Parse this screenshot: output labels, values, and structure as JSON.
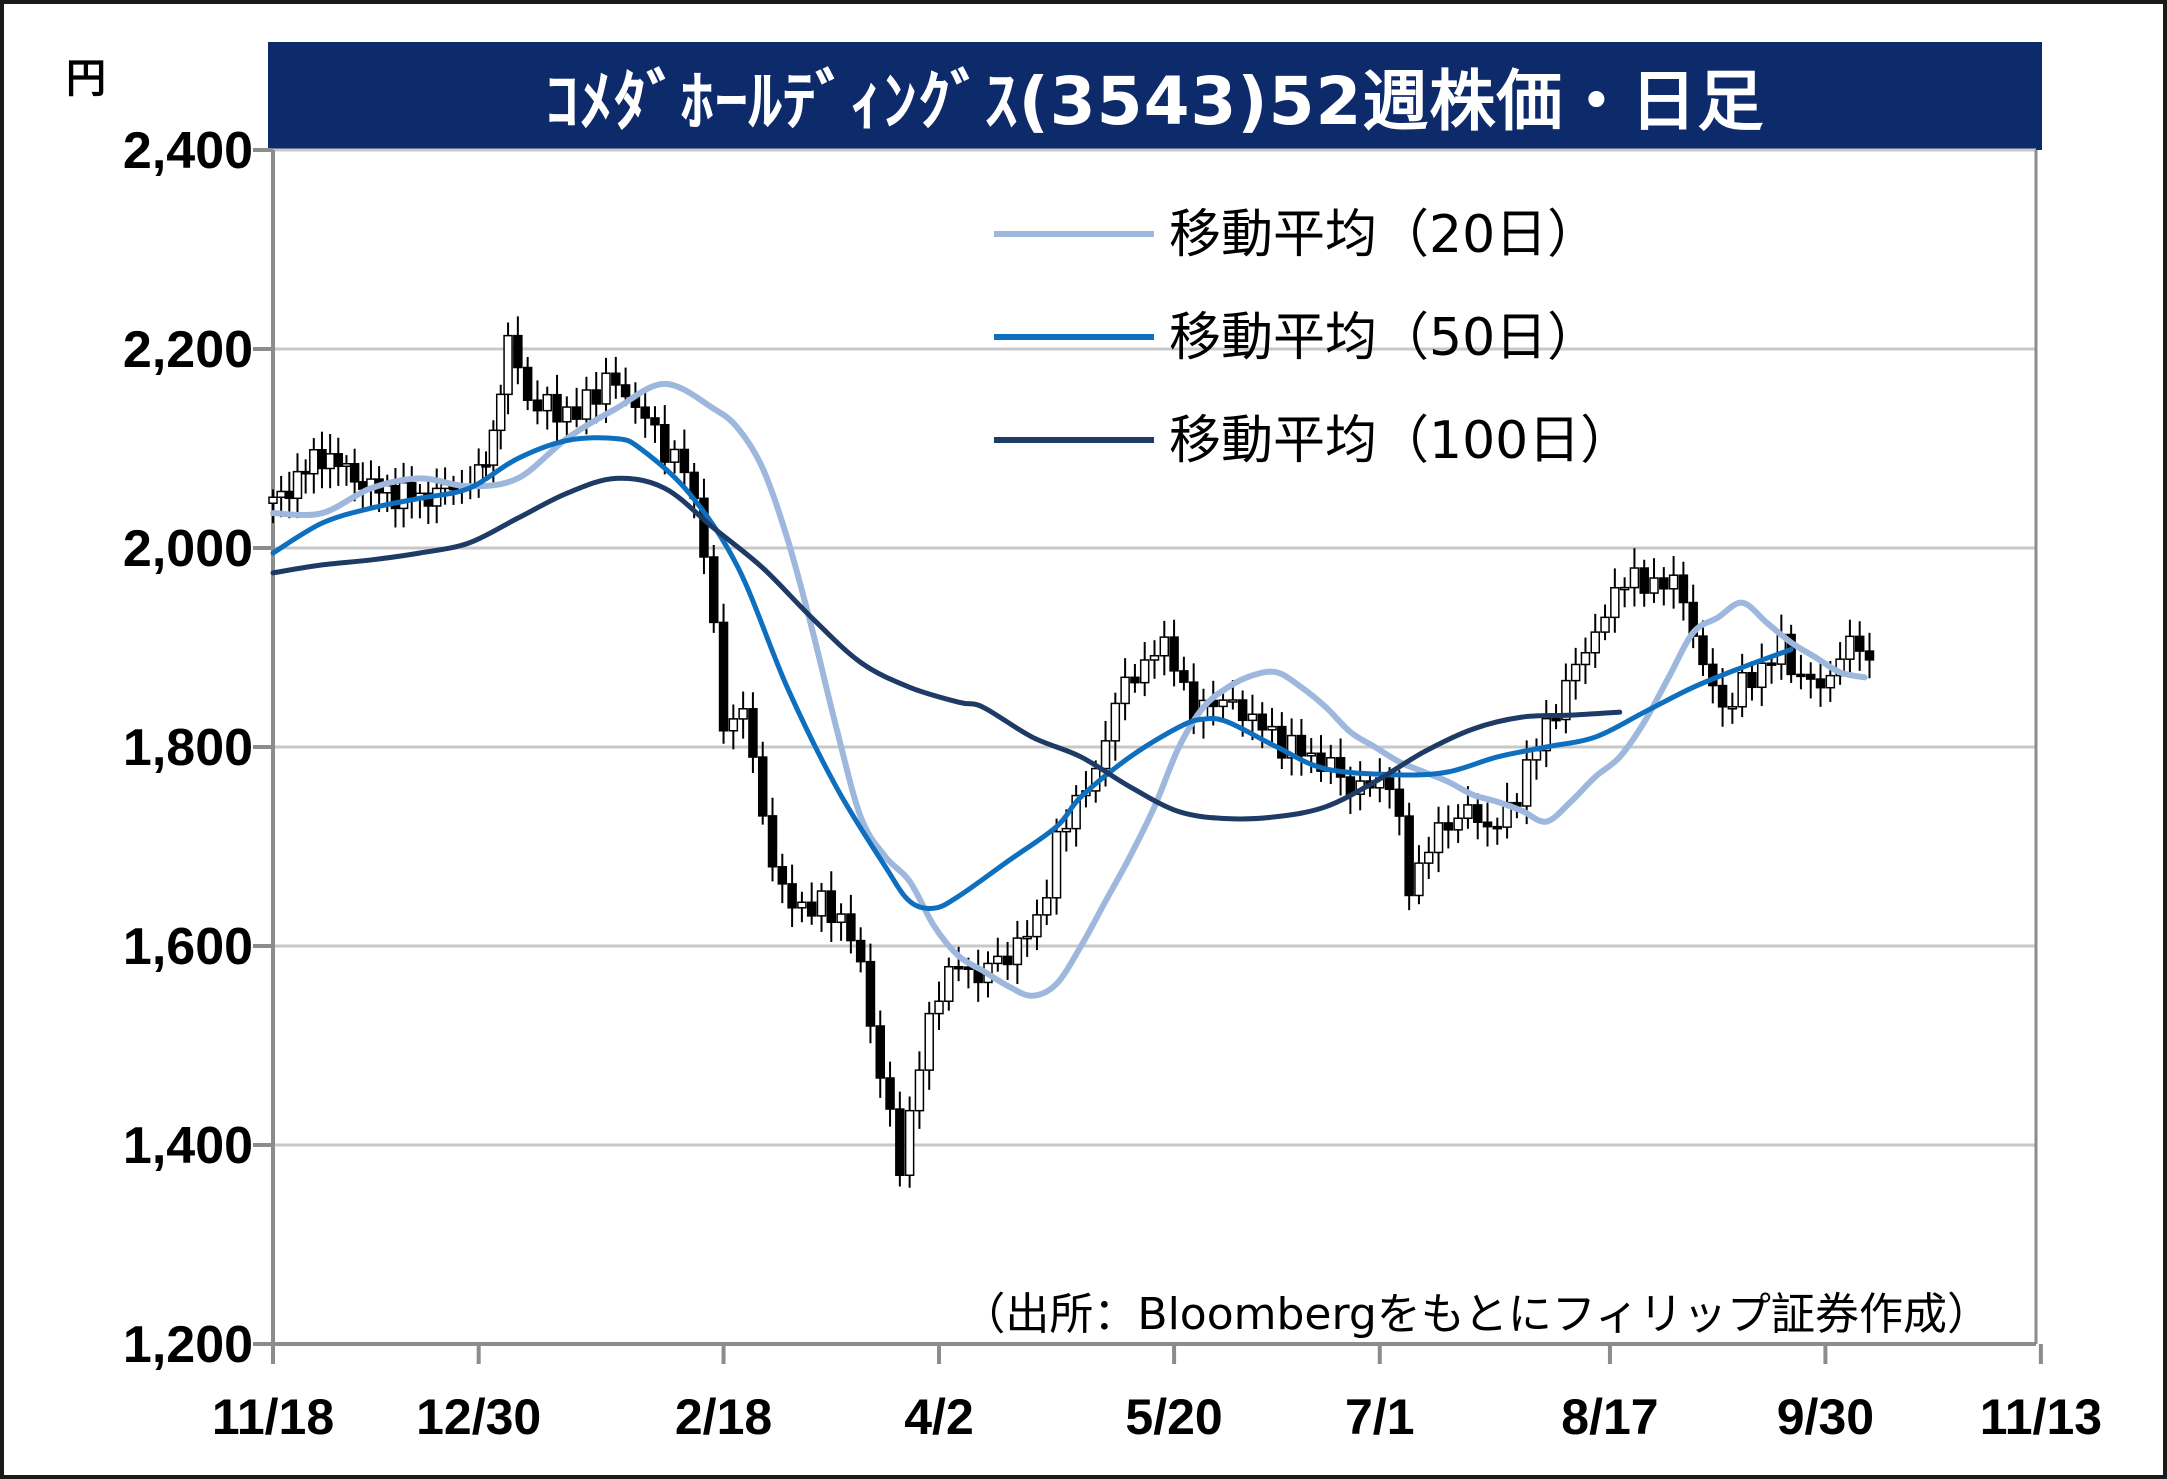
{
  "chart_data": {
    "type": "line",
    "title": "ｺﾒﾀﾞﾎｰﾙﾃﾞｨﾝｸﾞｽ(3543)52週株価・日足",
    "unit": "円",
    "source": "（出所：Bloombergをもとにフィリップ証券作成）",
    "x_tick_labels": [
      "11/18",
      "12/30",
      "2/18",
      "4/2",
      "5/20",
      "7/1",
      "8/17",
      "9/30",
      "11/13"
    ],
    "y_tick_labels": [
      "1,200",
      "1,400",
      "1,600",
      "1,800",
      "2,000",
      "2,200",
      "2,400"
    ],
    "y_tick_values": [
      1200,
      1400,
      1600,
      1800,
      2000,
      2200,
      2400
    ],
    "ylim": [
      1200,
      2400
    ],
    "x_range_days": [
      0,
      360
    ],
    "x_tick_days": [
      0,
      42,
      92,
      136,
      184,
      226,
      273,
      317,
      361
    ],
    "grid": true,
    "legend_position": "top-right",
    "colors": {
      "ma20": "#9db8dc",
      "ma50": "#0f6fbf",
      "ma100": "#1e3b66",
      "candle": "#000000",
      "title_bg": "#0d2a6b",
      "grid": "#c8c8c8"
    },
    "series": [
      {
        "name": "移動平均（20日）",
        "key": "ma20",
        "points": [
          [
            0,
            2035
          ],
          [
            10,
            2035
          ],
          [
            20,
            2060
          ],
          [
            30,
            2070
          ],
          [
            40,
            2062
          ],
          [
            50,
            2070
          ],
          [
            60,
            2110
          ],
          [
            70,
            2140
          ],
          [
            80,
            2165
          ],
          [
            90,
            2140
          ],
          [
            95,
            2120
          ],
          [
            100,
            2080
          ],
          [
            105,
            2010
          ],
          [
            110,
            1920
          ],
          [
            115,
            1820
          ],
          [
            120,
            1730
          ],
          [
            125,
            1690
          ],
          [
            130,
            1665
          ],
          [
            135,
            1620
          ],
          [
            140,
            1590
          ],
          [
            145,
            1575
          ],
          [
            150,
            1560
          ],
          [
            155,
            1550
          ],
          [
            160,
            1562
          ],
          [
            165,
            1600
          ],
          [
            170,
            1645
          ],
          [
            175,
            1690
          ],
          [
            180,
            1740
          ],
          [
            185,
            1800
          ],
          [
            190,
            1840
          ],
          [
            195,
            1860
          ],
          [
            200,
            1872
          ],
          [
            205,
            1875
          ],
          [
            210,
            1860
          ],
          [
            215,
            1840
          ],
          [
            220,
            1815
          ],
          [
            225,
            1800
          ],
          [
            230,
            1785
          ],
          [
            235,
            1775
          ],
          [
            240,
            1765
          ],
          [
            245,
            1752
          ],
          [
            250,
            1745
          ],
          [
            255,
            1736
          ],
          [
            260,
            1725
          ],
          [
            265,
            1745
          ],
          [
            270,
            1770
          ],
          [
            275,
            1790
          ],
          [
            280,
            1825
          ],
          [
            285,
            1870
          ],
          [
            290,
            1915
          ],
          [
            295,
            1930
          ],
          [
            300,
            1945
          ],
          [
            305,
            1925
          ],
          [
            310,
            1905
          ],
          [
            315,
            1890
          ],
          [
            320,
            1875
          ],
          [
            325,
            1870
          ]
        ]
      },
      {
        "name": "移動平均（50日）",
        "key": "ma50",
        "points": [
          [
            0,
            1995
          ],
          [
            10,
            2025
          ],
          [
            20,
            2040
          ],
          [
            30,
            2050
          ],
          [
            40,
            2060
          ],
          [
            50,
            2090
          ],
          [
            60,
            2108
          ],
          [
            70,
            2110
          ],
          [
            75,
            2100
          ],
          [
            85,
            2055
          ],
          [
            95,
            1980
          ],
          [
            105,
            1860
          ],
          [
            115,
            1760
          ],
          [
            125,
            1680
          ],
          [
            130,
            1645
          ],
          [
            135,
            1638
          ],
          [
            140,
            1650
          ],
          [
            150,
            1685
          ],
          [
            160,
            1720
          ],
          [
            165,
            1750
          ],
          [
            175,
            1790
          ],
          [
            185,
            1820
          ],
          [
            190,
            1828
          ],
          [
            195,
            1825
          ],
          [
            205,
            1800
          ],
          [
            215,
            1778
          ],
          [
            230,
            1772
          ],
          [
            240,
            1775
          ],
          [
            250,
            1790
          ],
          [
            260,
            1800
          ],
          [
            270,
            1810
          ],
          [
            280,
            1835
          ],
          [
            290,
            1860
          ],
          [
            300,
            1880
          ],
          [
            310,
            1898
          ]
        ]
      },
      {
        "name": "移動平均（100日）",
        "key": "ma100",
        "points": [
          [
            0,
            1975
          ],
          [
            10,
            1983
          ],
          [
            20,
            1988
          ],
          [
            30,
            1995
          ],
          [
            40,
            2005
          ],
          [
            50,
            2030
          ],
          [
            60,
            2055
          ],
          [
            70,
            2070
          ],
          [
            80,
            2060
          ],
          [
            90,
            2020
          ],
          [
            100,
            1980
          ],
          [
            110,
            1930
          ],
          [
            120,
            1885
          ],
          [
            130,
            1860
          ],
          [
            140,
            1845
          ],
          [
            145,
            1840
          ],
          [
            155,
            1810
          ],
          [
            165,
            1790
          ],
          [
            175,
            1760
          ],
          [
            185,
            1735
          ],
          [
            195,
            1728
          ],
          [
            205,
            1730
          ],
          [
            215,
            1740
          ],
          [
            225,
            1765
          ],
          [
            235,
            1795
          ],
          [
            245,
            1818
          ],
          [
            255,
            1830
          ],
          [
            265,
            1832
          ],
          [
            275,
            1835
          ]
        ]
      }
    ],
    "ohlc_approx": [
      [
        0,
        2045
      ],
      [
        10,
        2095
      ],
      [
        20,
        2060
      ],
      [
        30,
        2050
      ],
      [
        42,
        2070
      ],
      [
        45,
        2115
      ],
      [
        48,
        2210
      ],
      [
        52,
        2150
      ],
      [
        56,
        2140
      ],
      [
        62,
        2135
      ],
      [
        68,
        2170
      ],
      [
        74,
        2145
      ],
      [
        80,
        2100
      ],
      [
        84,
        2080
      ],
      [
        88,
        2005
      ],
      [
        92,
        1820
      ],
      [
        96,
        1840
      ],
      [
        100,
        1730
      ],
      [
        104,
        1650
      ],
      [
        108,
        1640
      ],
      [
        112,
        1640
      ],
      [
        116,
        1630
      ],
      [
        120,
        1580
      ],
      [
        124,
        1470
      ],
      [
        128,
        1380
      ],
      [
        132,
        1480
      ],
      [
        136,
        1560
      ],
      [
        140,
        1580
      ],
      [
        144,
        1570
      ],
      [
        148,
        1585
      ],
      [
        152,
        1600
      ],
      [
        156,
        1625
      ],
      [
        160,
        1700
      ],
      [
        164,
        1750
      ],
      [
        168,
        1770
      ],
      [
        172,
        1850
      ],
      [
        176,
        1870
      ],
      [
        180,
        1900
      ],
      [
        184,
        1890
      ],
      [
        188,
        1830
      ],
      [
        192,
        1850
      ],
      [
        196,
        1840
      ],
      [
        200,
        1830
      ],
      [
        204,
        1810
      ],
      [
        208,
        1800
      ],
      [
        212,
        1790
      ],
      [
        216,
        1780
      ],
      [
        220,
        1760
      ],
      [
        224,
        1760
      ],
      [
        228,
        1770
      ],
      [
        232,
        1660
      ],
      [
        236,
        1700
      ],
      [
        240,
        1725
      ],
      [
        244,
        1735
      ],
      [
        248,
        1720
      ],
      [
        252,
        1730
      ],
      [
        256,
        1780
      ],
      [
        260,
        1820
      ],
      [
        264,
        1860
      ],
      [
        268,
        1900
      ],
      [
        272,
        1930
      ],
      [
        276,
        1975
      ],
      [
        280,
        1960
      ],
      [
        284,
        1970
      ],
      [
        288,
        1950
      ],
      [
        292,
        1880
      ],
      [
        296,
        1840
      ],
      [
        300,
        1860
      ],
      [
        304,
        1880
      ],
      [
        308,
        1900
      ],
      [
        312,
        1870
      ],
      [
        316,
        1860
      ],
      [
        320,
        1890
      ],
      [
        324,
        1910
      ],
      [
        326,
        1880
      ]
    ]
  }
}
